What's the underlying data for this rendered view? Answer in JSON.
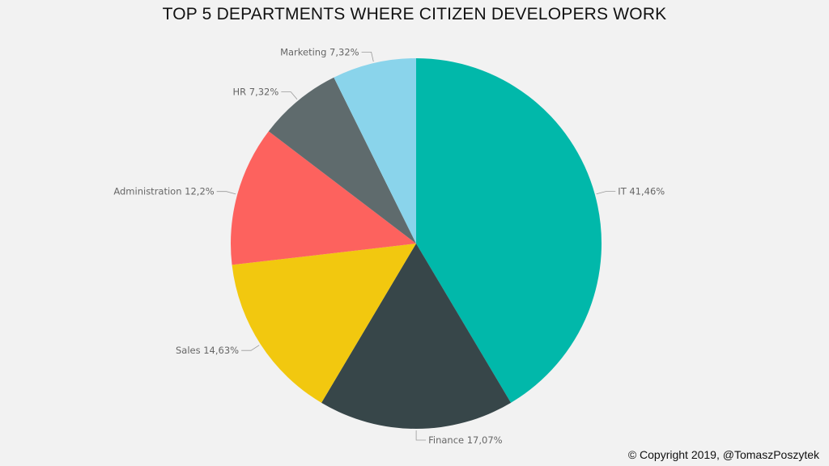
{
  "chart_data": {
    "type": "pie",
    "title": "TOP 5 DEPARTMENTS WHERE CITIZEN DEVELOPERS WORK",
    "start_angle_deg": 0,
    "direction": "clockwise",
    "slices": [
      {
        "category": "IT",
        "value": 41.46,
        "label": "IT 41,46%",
        "color": "#01B8AA"
      },
      {
        "category": "Finance",
        "value": 17.07,
        "label": "Finance 17,07%",
        "color": "#374649"
      },
      {
        "category": "Sales",
        "value": 14.63,
        "label": "Sales 14,63%",
        "color": "#F2C80F"
      },
      {
        "category": "Administration",
        "value": 12.2,
        "label": "Administration 12,2%",
        "color": "#FD625E"
      },
      {
        "category": "HR",
        "value": 7.32,
        "label": "HR 7,32%",
        "color": "#5F6B6D"
      },
      {
        "category": "Marketing",
        "value": 7.32,
        "label": "Marketing 7,32%",
        "color": "#8AD4EB"
      }
    ]
  },
  "footer": {
    "copyright": "© Copyright 2019, @TomaszPoszytek"
  }
}
